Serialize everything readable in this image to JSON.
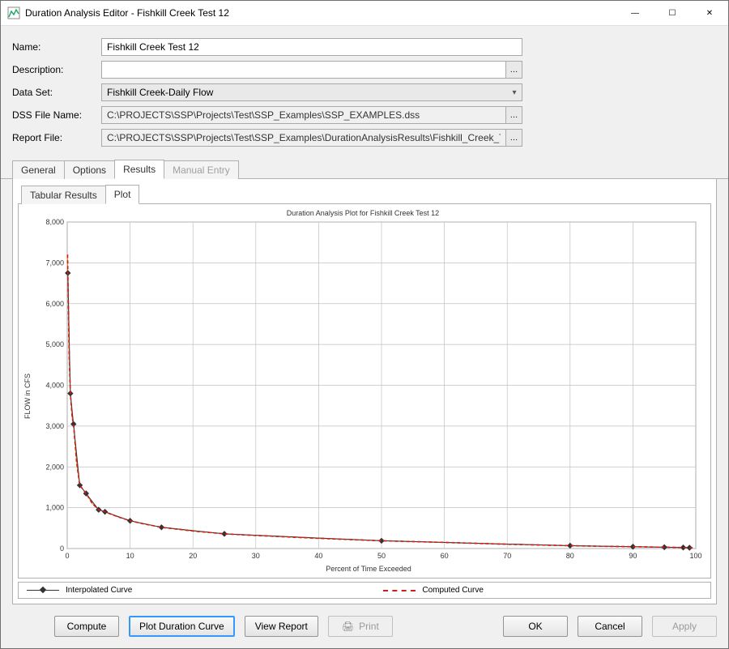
{
  "window": {
    "title": "Duration Analysis Editor - Fishkill Creek Test 12"
  },
  "form": {
    "name_label": "Name:",
    "name_value": "Fishkill Creek Test 12",
    "description_label": "Description:",
    "description_value": "",
    "dataset_label": "Data Set:",
    "dataset_value": "Fishkill Creek-Daily Flow",
    "dssfile_label": "DSS File Name:",
    "dssfile_value": "C:\\PROJECTS\\SSP\\Projects\\Test\\SSP_Examples\\SSP_EXAMPLES.dss",
    "reportfile_label": "Report File:",
    "reportfile_value": "C:\\PROJECTS\\SSP\\Projects\\Test\\SSP_Examples\\DurationAnalysisResults\\Fishkill_Creek_T"
  },
  "tabs": {
    "main": [
      "General",
      "Options",
      "Results",
      "Manual Entry"
    ],
    "main_active": 2,
    "main_disabled": [
      3
    ],
    "sub": [
      "Tabular Results",
      "Plot"
    ],
    "sub_active": 1
  },
  "chart": {
    "title": "Duration Analysis Plot for Fishkill Creek Test 12",
    "xlabel": "Percent of Time Exceeded",
    "ylabel": "FLOW in CFS",
    "xlim": [
      0,
      100
    ],
    "ylim": [
      0,
      8000
    ],
    "xtick_step": 10,
    "ytick_step": 1000,
    "xticks": [
      0,
      10,
      20,
      30,
      40,
      50,
      60,
      70,
      80,
      90,
      100
    ],
    "yticks": [
      0,
      1000,
      2000,
      3000,
      4000,
      5000,
      6000,
      7000,
      8000
    ],
    "ytick_labels": [
      "0",
      "1,000",
      "2,000",
      "3,000",
      "4,000",
      "5,000",
      "6,000",
      "7,000",
      "8,000"
    ],
    "grid_color": "#c0c0c0",
    "axis_color": "#808080",
    "background_color": "#ffffff",
    "tick_fontsize": 9,
    "label_fontsize": 9,
    "title_fontsize": 9,
    "series": {
      "interpolated": {
        "label": "Interpolated Curve",
        "color": "#333333",
        "line_width": 1,
        "marker": "diamond",
        "marker_size": 6,
        "marker_color": "#333333",
        "points": [
          [
            0.1,
            6750
          ],
          [
            0.5,
            3800
          ],
          [
            1,
            3050
          ],
          [
            2,
            1550
          ],
          [
            3,
            1350
          ],
          [
            5,
            950
          ],
          [
            6,
            900
          ],
          [
            10,
            680
          ],
          [
            15,
            520
          ],
          [
            25,
            360
          ],
          [
            50,
            190
          ],
          [
            80,
            70
          ],
          [
            90,
            45
          ],
          [
            95,
            32
          ],
          [
            98,
            25
          ],
          [
            99,
            20
          ]
        ]
      },
      "computed": {
        "label": "Computed Curve",
        "color": "#d7191c",
        "line_width": 1.5,
        "dash": "4,3",
        "points": [
          [
            0.05,
            7200
          ],
          [
            0.1,
            6750
          ],
          [
            0.3,
            4800
          ],
          [
            0.5,
            3800
          ],
          [
            0.8,
            3200
          ],
          [
            1,
            3050
          ],
          [
            1.5,
            2100
          ],
          [
            2,
            1550
          ],
          [
            3,
            1350
          ],
          [
            4,
            1100
          ],
          [
            5,
            950
          ],
          [
            6,
            900
          ],
          [
            8,
            780
          ],
          [
            10,
            680
          ],
          [
            12,
            610
          ],
          [
            15,
            520
          ],
          [
            20,
            430
          ],
          [
            25,
            360
          ],
          [
            30,
            320
          ],
          [
            40,
            250
          ],
          [
            50,
            190
          ],
          [
            60,
            150
          ],
          [
            70,
            105
          ],
          [
            80,
            70
          ],
          [
            85,
            55
          ],
          [
            90,
            45
          ],
          [
            95,
            32
          ],
          [
            98,
            25
          ],
          [
            99,
            20
          ],
          [
            99.5,
            18
          ]
        ]
      }
    },
    "legend": {
      "interpolated": "Interpolated Curve",
      "computed": "Computed Curve"
    }
  },
  "buttons": {
    "compute": "Compute",
    "plot_duration": "Plot Duration Curve",
    "view_report": "View Report",
    "print": "Print",
    "ok": "OK",
    "cancel": "Cancel",
    "apply": "Apply"
  }
}
